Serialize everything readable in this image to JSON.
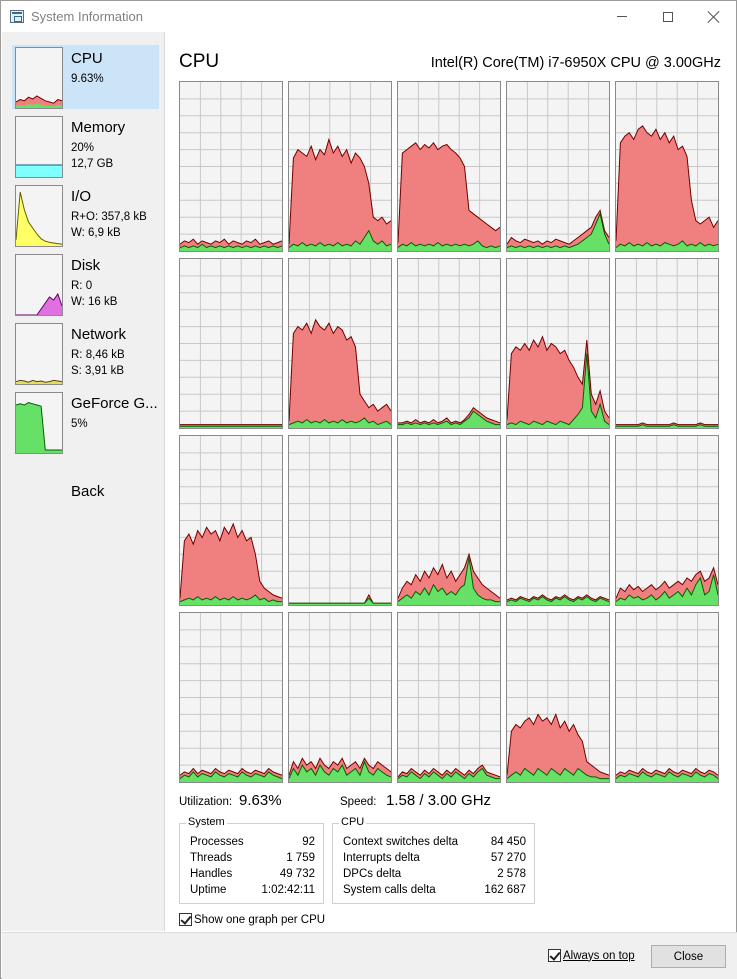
{
  "window": {
    "title": "System Information"
  },
  "sidebar": {
    "items": [
      {
        "name": "CPU",
        "line1": "9.63%",
        "line2": "",
        "selected": true,
        "icon": "cpu-graph-thumbnail"
      },
      {
        "name": "Memory",
        "line1": "20%",
        "line2": "12,7 GB",
        "selected": false,
        "icon": "memory-graph-thumbnail"
      },
      {
        "name": "I/O",
        "line1": "R+O: 357,8 kB",
        "line2": "W: 6,9 kB",
        "selected": false,
        "icon": "io-graph-thumbnail"
      },
      {
        "name": "Disk",
        "line1": "R: 0",
        "line2": "W: 16 kB",
        "selected": false,
        "icon": "disk-graph-thumbnail"
      },
      {
        "name": "Network",
        "line1": "R: 8,46 kB",
        "line2": "S: 3,91 kB",
        "selected": false,
        "icon": "network-graph-thumbnail"
      },
      {
        "name": "GeForce G...",
        "line1": "5%",
        "line2": "",
        "selected": false,
        "icon": "gpu-graph-thumbnail"
      }
    ],
    "back_label": "Back"
  },
  "main": {
    "title": "CPU",
    "cpu_model": "Intel(R) Core(TM) i7-6950X CPU @ 3.00GHz",
    "utilization_label": "Utilization:",
    "utilization_value": "9.63%",
    "speed_label": "Speed:",
    "speed_value": "1.58 / 3.00 GHz"
  },
  "system_group": {
    "title": "System",
    "rows": [
      {
        "key": "Processes",
        "value": "92"
      },
      {
        "key": "Threads",
        "value": "1 759"
      },
      {
        "key": "Handles",
        "value": "49 732"
      },
      {
        "key": "Uptime",
        "value": "1:02:42:11"
      }
    ]
  },
  "cpu_group": {
    "title": "CPU",
    "rows": [
      {
        "key": "Context switches delta",
        "value": "84 450"
      },
      {
        "key": "Interrupts delta",
        "value": "57 270"
      },
      {
        "key": "DPCs delta",
        "value": "2 578"
      },
      {
        "key": "System calls delta",
        "value": "162 687"
      }
    ]
  },
  "options": {
    "one_graph_label": "Show one graph per CPU",
    "one_graph_checked": true,
    "always_on_top_label": "Always on top",
    "always_on_top_checked": true
  },
  "buttons": {
    "close_label": "Close"
  },
  "colors": {
    "grid_bg": "#f4f4f4",
    "grid_line": "#c8c8c8",
    "total_fill": "#f08080",
    "kernel_fill": "#66e066",
    "memory_fill": "#80ffff",
    "io_fill": "#ffff66",
    "disk_fill": "#e070e0",
    "selected_bg": "#cce4f7"
  },
  "cpu_graph_levels": {
    "series_note_total_and_kernel_percent": "",
    "cores": [
      {
        "total": [
          4,
          6,
          5,
          7,
          4,
          6,
          5,
          4,
          6,
          5,
          7,
          4,
          6,
          5,
          4,
          6,
          5,
          7,
          4,
          5,
          6,
          4,
          5,
          6
        ],
        "kernel": [
          2,
          3,
          2,
          3,
          2,
          4,
          2,
          3,
          2,
          3,
          2,
          3,
          2,
          3,
          2,
          3,
          2,
          3,
          2,
          3,
          2,
          3,
          2,
          3
        ]
      },
      {
        "total": [
          4,
          55,
          60,
          58,
          56,
          62,
          54,
          60,
          57,
          66,
          58,
          62,
          56,
          60,
          52,
          58,
          55,
          50,
          40,
          20,
          18,
          20,
          16,
          18
        ],
        "kernel": [
          2,
          4,
          3,
          5,
          3,
          4,
          3,
          5,
          3,
          4,
          3,
          5,
          3,
          4,
          3,
          6,
          4,
          8,
          12,
          6,
          4,
          6,
          3,
          4
        ]
      },
      {
        "total": [
          5,
          58,
          60,
          62,
          64,
          60,
          63,
          61,
          64,
          60,
          62,
          63,
          60,
          58,
          55,
          50,
          24,
          22,
          20,
          18,
          16,
          14,
          12,
          14
        ],
        "kernel": [
          2,
          4,
          3,
          5,
          3,
          4,
          3,
          4,
          3,
          5,
          3,
          4,
          3,
          4,
          3,
          4,
          3,
          4,
          6,
          3,
          2,
          3,
          2,
          3
        ]
      },
      {
        "total": [
          4,
          8,
          6,
          5,
          7,
          6,
          5,
          6,
          4,
          6,
          5,
          7,
          6,
          5,
          4,
          6,
          8,
          10,
          12,
          14,
          20,
          24,
          12,
          8
        ],
        "kernel": [
          2,
          3,
          2,
          3,
          2,
          3,
          2,
          3,
          2,
          3,
          2,
          3,
          2,
          3,
          2,
          3,
          4,
          6,
          8,
          10,
          16,
          22,
          10,
          4
        ]
      },
      {
        "total": [
          6,
          64,
          68,
          70,
          66,
          72,
          74,
          70,
          68,
          72,
          66,
          70,
          64,
          68,
          60,
          62,
          56,
          30,
          18,
          16,
          18,
          20,
          14,
          18
        ],
        "kernel": [
          2,
          4,
          3,
          5,
          3,
          4,
          3,
          5,
          3,
          4,
          3,
          5,
          4,
          3,
          4,
          6,
          3,
          4,
          3,
          5,
          3,
          4,
          3,
          4
        ]
      },
      {
        "total": [
          2,
          2,
          2,
          2,
          2,
          2,
          2,
          2,
          2,
          2,
          2,
          2,
          2,
          2,
          2,
          2,
          2,
          2,
          2,
          2,
          2,
          2,
          2,
          2
        ],
        "kernel": [
          1,
          1,
          1,
          1,
          1,
          1,
          1,
          1,
          1,
          1,
          1,
          1,
          1,
          1,
          1,
          1,
          1,
          1,
          1,
          1,
          1,
          1,
          1,
          1
        ]
      },
      {
        "total": [
          4,
          56,
          60,
          58,
          62,
          56,
          64,
          60,
          58,
          62,
          56,
          60,
          58,
          52,
          54,
          48,
          20,
          16,
          12,
          14,
          10,
          12,
          14,
          10
        ],
        "kernel": [
          2,
          3,
          4,
          3,
          5,
          3,
          4,
          3,
          5,
          3,
          4,
          3,
          5,
          3,
          4,
          3,
          4,
          6,
          3,
          4,
          2,
          3,
          4,
          2
        ]
      },
      {
        "total": [
          3,
          3,
          4,
          3,
          5,
          3,
          4,
          3,
          5,
          3,
          4,
          6,
          3,
          4,
          3,
          5,
          8,
          12,
          10,
          8,
          6,
          5,
          4,
          3
        ],
        "kernel": [
          2,
          2,
          3,
          2,
          3,
          2,
          3,
          2,
          3,
          2,
          3,
          4,
          2,
          3,
          2,
          4,
          6,
          10,
          8,
          6,
          4,
          3,
          2,
          2
        ]
      },
      {
        "total": [
          5,
          44,
          48,
          46,
          50,
          46,
          52,
          48,
          54,
          46,
          50,
          48,
          44,
          46,
          40,
          36,
          30,
          26,
          52,
          20,
          14,
          22,
          10,
          6
        ],
        "kernel": [
          2,
          3,
          2,
          4,
          3,
          2,
          4,
          3,
          2,
          4,
          3,
          2,
          4,
          3,
          2,
          5,
          8,
          12,
          44,
          10,
          6,
          14,
          4,
          2
        ]
      },
      {
        "total": [
          2,
          2,
          2,
          2,
          2,
          2,
          3,
          2,
          2,
          2,
          2,
          2,
          2,
          3,
          2,
          2,
          2,
          2,
          2,
          3,
          2,
          2,
          2,
          2
        ],
        "kernel": [
          1,
          1,
          1,
          1,
          1,
          1,
          2,
          1,
          1,
          1,
          1,
          1,
          1,
          2,
          1,
          1,
          1,
          1,
          1,
          2,
          1,
          1,
          1,
          1
        ]
      },
      {
        "total": [
          4,
          38,
          42,
          36,
          44,
          40,
          46,
          42,
          44,
          38,
          46,
          42,
          48,
          40,
          44,
          38,
          40,
          30,
          14,
          10,
          8,
          6,
          5,
          4
        ],
        "kernel": [
          2,
          3,
          4,
          3,
          5,
          3,
          4,
          3,
          5,
          3,
          4,
          3,
          5,
          3,
          4,
          3,
          4,
          6,
          3,
          4,
          2,
          3,
          2,
          2
        ]
      },
      {
        "total": [
          1,
          1,
          1,
          1,
          1,
          1,
          1,
          1,
          1,
          1,
          1,
          1,
          1,
          1,
          1,
          1,
          1,
          1,
          6,
          1,
          1,
          1,
          1,
          1
        ],
        "kernel": [
          1,
          1,
          1,
          1,
          1,
          1,
          1,
          1,
          1,
          1,
          1,
          1,
          1,
          1,
          1,
          1,
          1,
          1,
          4,
          1,
          1,
          1,
          1,
          1
        ]
      },
      {
        "total": [
          4,
          10,
          14,
          12,
          18,
          14,
          20,
          16,
          22,
          18,
          24,
          16,
          20,
          14,
          18,
          22,
          30,
          20,
          16,
          12,
          10,
          8,
          6,
          4
        ],
        "kernel": [
          2,
          4,
          6,
          4,
          8,
          6,
          10,
          6,
          12,
          8,
          10,
          6,
          8,
          6,
          10,
          12,
          28,
          10,
          6,
          4,
          3,
          3,
          2,
          2
        ]
      },
      {
        "total": [
          3,
          4,
          3,
          5,
          4,
          3,
          5,
          4,
          6,
          4,
          3,
          5,
          4,
          6,
          4,
          3,
          5,
          4,
          6,
          4,
          3,
          5,
          4,
          3
        ],
        "kernel": [
          2,
          3,
          2,
          4,
          3,
          2,
          4,
          3,
          5,
          3,
          2,
          4,
          3,
          5,
          3,
          2,
          4,
          3,
          5,
          3,
          2,
          4,
          3,
          2
        ]
      },
      {
        "total": [
          4,
          10,
          8,
          12,
          9,
          11,
          8,
          10,
          12,
          9,
          11,
          14,
          10,
          12,
          14,
          12,
          16,
          14,
          18,
          20,
          14,
          16,
          22,
          12
        ],
        "kernel": [
          2,
          4,
          3,
          6,
          4,
          5,
          3,
          4,
          6,
          3,
          5,
          8,
          4,
          6,
          8,
          5,
          10,
          6,
          12,
          16,
          6,
          8,
          18,
          6
        ]
      },
      {
        "total": [
          4,
          6,
          5,
          8,
          5,
          7,
          6,
          5,
          8,
          6,
          5,
          7,
          6,
          5,
          8,
          6,
          5,
          7,
          6,
          5,
          8,
          6,
          5,
          4
        ],
        "kernel": [
          2,
          4,
          3,
          6,
          3,
          5,
          4,
          3,
          6,
          4,
          3,
          5,
          4,
          3,
          6,
          4,
          3,
          5,
          4,
          3,
          6,
          4,
          3,
          2
        ]
      },
      {
        "total": [
          4,
          12,
          8,
          14,
          10,
          12,
          8,
          14,
          10,
          8,
          12,
          10,
          14,
          8,
          10,
          12,
          8,
          14,
          10,
          8,
          12,
          10,
          8,
          6
        ],
        "kernel": [
          2,
          8,
          4,
          10,
          6,
          8,
          4,
          10,
          6,
          4,
          8,
          6,
          10,
          4,
          6,
          8,
          4,
          12,
          6,
          4,
          8,
          6,
          4,
          3
        ]
      },
      {
        "total": [
          3,
          6,
          5,
          8,
          6,
          4,
          7,
          5,
          8,
          6,
          4,
          7,
          5,
          8,
          6,
          4,
          7,
          5,
          8,
          10,
          6,
          5,
          4,
          3
        ],
        "kernel": [
          2,
          4,
          3,
          6,
          4,
          2,
          5,
          3,
          6,
          4,
          2,
          5,
          3,
          6,
          4,
          2,
          5,
          3,
          6,
          8,
          4,
          3,
          2,
          2
        ]
      },
      {
        "total": [
          4,
          30,
          34,
          32,
          36,
          38,
          34,
          40,
          36,
          38,
          34,
          40,
          32,
          36,
          30,
          34,
          28,
          24,
          12,
          10,
          8,
          6,
          5,
          4
        ],
        "kernel": [
          2,
          4,
          6,
          4,
          8,
          6,
          4,
          8,
          6,
          4,
          8,
          6,
          4,
          8,
          6,
          4,
          8,
          6,
          4,
          3,
          3,
          2,
          2,
          2
        ]
      },
      {
        "total": [
          4,
          6,
          5,
          7,
          6,
          5,
          8,
          6,
          5,
          7,
          6,
          5,
          8,
          6,
          5,
          7,
          6,
          5,
          8,
          6,
          5,
          7,
          6,
          4
        ],
        "kernel": [
          2,
          4,
          3,
          5,
          4,
          3,
          6,
          4,
          3,
          5,
          4,
          3,
          6,
          4,
          3,
          5,
          4,
          3,
          6,
          4,
          3,
          5,
          4,
          2
        ]
      }
    ]
  },
  "sidebar_graph_levels": {
    "cpu": [
      10,
      14,
      12,
      18,
      15,
      20,
      16,
      12,
      10,
      8,
      14,
      12
    ],
    "memory": [
      20,
      20,
      20,
      20,
      20,
      20,
      20,
      20,
      20,
      20,
      20,
      20
    ],
    "io": [
      10,
      90,
      60,
      40,
      30,
      20,
      12,
      8,
      6,
      5,
      4,
      3
    ],
    "disk": [
      0,
      0,
      0,
      0,
      0,
      0,
      10,
      20,
      30,
      25,
      35,
      15
    ],
    "network": [
      4,
      6,
      5,
      3,
      6,
      4,
      5,
      3,
      4,
      6,
      5,
      4
    ],
    "gpu": [
      80,
      82,
      80,
      84,
      82,
      80,
      78,
      5,
      5,
      5,
      5,
      5
    ]
  }
}
